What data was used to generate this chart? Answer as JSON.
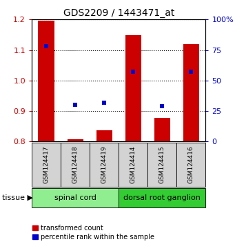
{
  "title": "GDS2209 / 1443471_at",
  "samples": [
    "GSM124417",
    "GSM124418",
    "GSM124419",
    "GSM124414",
    "GSM124415",
    "GSM124416"
  ],
  "red_values": [
    1.197,
    0.808,
    0.838,
    1.148,
    0.878,
    1.12
  ],
  "blue_values": [
    78,
    30,
    32,
    57,
    29,
    57
  ],
  "ylim_left": [
    0.8,
    1.2
  ],
  "ylim_right": [
    0,
    100
  ],
  "yticks_left": [
    0.8,
    0.9,
    1.0,
    1.1,
    1.2
  ],
  "yticks_right": [
    0,
    25,
    50,
    75,
    100
  ],
  "ytick_labels_right": [
    "0",
    "25",
    "50",
    "75",
    "100%"
  ],
  "group1_count": 3,
  "group2_count": 3,
  "group1_label": "spinal cord",
  "group2_label": "dorsal root ganglion",
  "tissue_label": "tissue",
  "legend_red": "transformed count",
  "legend_blue": "percentile rank within the sample",
  "bar_color": "#cc0000",
  "dot_color": "#0000cc",
  "bar_bottom": 0.8,
  "gray_color": "#d3d3d3",
  "group1_color": "#90ee90",
  "group2_color": "#33cc33",
  "bg_color": "#ffffff",
  "title_fontsize": 10,
  "tick_fontsize": 8,
  "label_fontsize": 7.5,
  "legend_fontsize": 7,
  "tissue_fontsize": 8,
  "sample_fontsize": 6.5
}
